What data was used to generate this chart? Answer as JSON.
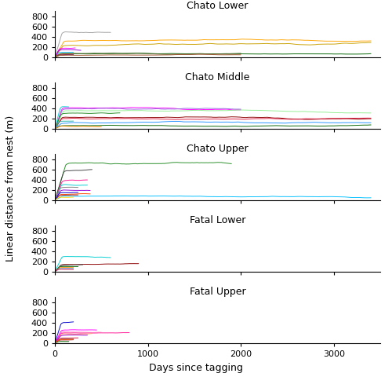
{
  "panels": [
    {
      "title": "Chato Lower",
      "xlim": [
        0,
        3500
      ],
      "ylim": [
        0,
        900
      ],
      "yticks": [
        0,
        200,
        400,
        600,
        800
      ],
      "series": [
        {
          "color": "#A0A0A0",
          "level": 500,
          "end": 600,
          "noise": 18,
          "ramp": 80
        },
        {
          "color": "#FFA500",
          "level": 320,
          "end": 3400,
          "noise": 12,
          "ramp": 100
        },
        {
          "color": "#C8A000",
          "level": 230,
          "end": 3400,
          "noise": 14,
          "ramp": 90
        },
        {
          "color": "#006400",
          "level": 70,
          "end": 3400,
          "noise": 8,
          "ramp": 70
        },
        {
          "color": "#00BFFF",
          "level": 100,
          "end": 200,
          "noise": 8,
          "ramp": 50
        },
        {
          "color": "#FF00FF",
          "level": 180,
          "end": 220,
          "noise": 10,
          "ramp": 50
        },
        {
          "color": "#9400D3",
          "level": 150,
          "end": 280,
          "noise": 10,
          "ramp": 45
        },
        {
          "color": "#0000CD",
          "level": 50,
          "end": 200,
          "noise": 6,
          "ramp": 40
        },
        {
          "color": "#FF4500",
          "level": 60,
          "end": 200,
          "noise": 6,
          "ramp": 35
        },
        {
          "color": "#556B2F",
          "level": 80,
          "end": 2000,
          "noise": 8,
          "ramp": 60
        },
        {
          "color": "#A0522D",
          "level": 40,
          "end": 2000,
          "noise": 6,
          "ramp": 50
        }
      ]
    },
    {
      "title": "Chato Middle",
      "xlim": [
        0,
        3500
      ],
      "ylim": [
        0,
        900
      ],
      "yticks": [
        0,
        200,
        400,
        600,
        800
      ],
      "series": [
        {
          "color": "#FF00FF",
          "level": 410,
          "end": 2000,
          "noise": 14,
          "ramp": 80
        },
        {
          "color": "#9370DB",
          "level": 390,
          "end": 2000,
          "noise": 14,
          "ramp": 85
        },
        {
          "color": "#90EE90",
          "level": 350,
          "end": 3400,
          "noise": 12,
          "ramp": 90
        },
        {
          "color": "#00CED1",
          "level": 430,
          "end": 150,
          "noise": 12,
          "ramp": 60
        },
        {
          "color": "#228B22",
          "level": 300,
          "end": 700,
          "noise": 10,
          "ramp": 70
        },
        {
          "color": "#8B0000",
          "level": 230,
          "end": 3400,
          "noise": 12,
          "ramp": 80
        },
        {
          "color": "#DC143C",
          "level": 200,
          "end": 3400,
          "noise": 10,
          "ramp": 75
        },
        {
          "color": "#1E90FF",
          "level": 110,
          "end": 3400,
          "noise": 10,
          "ramp": 70
        },
        {
          "color": "#006400",
          "level": 60,
          "end": 3400,
          "noise": 8,
          "ramp": 60
        },
        {
          "color": "#FF8C00",
          "level": 50,
          "end": 500,
          "noise": 8,
          "ramp": 55
        },
        {
          "color": "#20B2AA",
          "level": 150,
          "end": 200,
          "noise": 10,
          "ramp": 50
        }
      ]
    },
    {
      "title": "Chato Upper",
      "xlim": [
        0,
        3500
      ],
      "ylim": [
        0,
        900
      ],
      "yticks": [
        0,
        200,
        400,
        600,
        800
      ],
      "series": [
        {
          "color": "#228B22",
          "level": 720,
          "end": 1900,
          "noise": 20,
          "ramp": 120
        },
        {
          "color": "#404040",
          "level": 580,
          "end": 400,
          "noise": 16,
          "ramp": 100
        },
        {
          "color": "#00BFFF",
          "level": 80,
          "end": 3400,
          "noise": 8,
          "ramp": 80
        },
        {
          "color": "#FF1493",
          "level": 380,
          "end": 350,
          "noise": 14,
          "ramp": 80
        },
        {
          "color": "#00CED1",
          "level": 310,
          "end": 350,
          "noise": 12,
          "ramp": 75
        },
        {
          "color": "#9400D3",
          "level": 200,
          "end": 380,
          "noise": 10,
          "ramp": 65
        },
        {
          "color": "#FF4500",
          "level": 120,
          "end": 380,
          "noise": 10,
          "ramp": 60
        },
        {
          "color": "#A52A2A",
          "level": 100,
          "end": 250,
          "noise": 8,
          "ramp": 55
        },
        {
          "color": "#808080",
          "level": 250,
          "end": 250,
          "noise": 10,
          "ramp": 60
        },
        {
          "color": "#0000CD",
          "level": 150,
          "end": 250,
          "noise": 8,
          "ramp": 55
        },
        {
          "color": "#FFD700",
          "level": 60,
          "end": 200,
          "noise": 6,
          "ramp": 45
        }
      ]
    },
    {
      "title": "Fatal Lower",
      "xlim": [
        0,
        3500
      ],
      "ylim": [
        0,
        900
      ],
      "yticks": [
        0,
        200,
        400,
        600,
        800
      ],
      "series": [
        {
          "color": "#00CED1",
          "level": 300,
          "end": 600,
          "noise": 14,
          "ramp": 80
        },
        {
          "color": "#8B0000",
          "level": 140,
          "end": 900,
          "noise": 8,
          "ramp": 70
        },
        {
          "color": "#404040",
          "level": 130,
          "end": 300,
          "noise": 8,
          "ramp": 65
        },
        {
          "color": "#808080",
          "level": 120,
          "end": 250,
          "noise": 8,
          "ramp": 60
        },
        {
          "color": "#006400",
          "level": 100,
          "end": 250,
          "noise": 6,
          "ramp": 55
        },
        {
          "color": "#FF8C00",
          "level": 80,
          "end": 200,
          "noise": 6,
          "ramp": 50
        },
        {
          "color": "#1E90FF",
          "level": 60,
          "end": 200,
          "noise": 5,
          "ramp": 45
        },
        {
          "color": "#DC143C",
          "level": 50,
          "end": 200,
          "noise": 5,
          "ramp": 40
        }
      ]
    },
    {
      "title": "Fatal Upper",
      "xlim": [
        0,
        3500
      ],
      "ylim": [
        0,
        900
      ],
      "yticks": [
        0,
        200,
        400,
        600,
        800
      ],
      "series": [
        {
          "color": "#0000CD",
          "level": 400,
          "end": 200,
          "noise": 14,
          "ramp": 70
        },
        {
          "color": "#FF1493",
          "level": 200,
          "end": 800,
          "noise": 10,
          "ramp": 75
        },
        {
          "color": "#FF69B4",
          "level": 220,
          "end": 500,
          "noise": 10,
          "ramp": 72
        },
        {
          "color": "#FFA07A",
          "level": 180,
          "end": 400,
          "noise": 10,
          "ramp": 68
        },
        {
          "color": "#FF00FF",
          "level": 260,
          "end": 450,
          "noise": 12,
          "ramp": 75
        },
        {
          "color": "#9400D3",
          "level": 150,
          "end": 350,
          "noise": 8,
          "ramp": 65
        },
        {
          "color": "#DC143C",
          "level": 100,
          "end": 250,
          "noise": 7,
          "ramp": 58
        },
        {
          "color": "#808080",
          "level": 80,
          "end": 200,
          "noise": 6,
          "ramp": 55
        },
        {
          "color": "#A52A2A",
          "level": 60,
          "end": 200,
          "noise": 5,
          "ramp": 50
        },
        {
          "color": "#006400",
          "level": 30,
          "end": 150,
          "noise": 4,
          "ramp": 40
        },
        {
          "color": "#FF4500",
          "level": 70,
          "end": 200,
          "noise": 6,
          "ramp": 52
        }
      ]
    }
  ],
  "xlabel": "Days since tagging",
  "ylabel": "Linear distance from nest (m)",
  "title_fontsize": 9,
  "label_fontsize": 9,
  "tick_fontsize": 8,
  "linewidth": 0.7,
  "figsize": [
    5.0,
    4.8
  ],
  "dpi": 100
}
